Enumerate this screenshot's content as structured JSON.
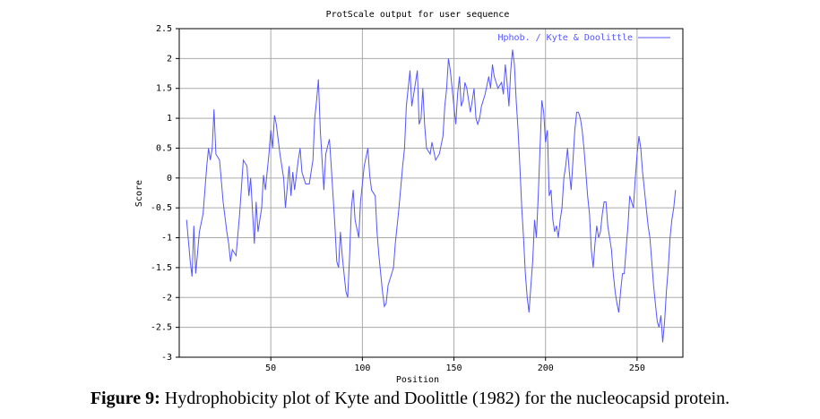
{
  "chart_data": {
    "type": "line",
    "title": "ProtScale output for user sequence",
    "xlabel": "Position",
    "ylabel": "Score",
    "xlim": [
      0,
      275
    ],
    "xticks": [
      50,
      100,
      150,
      200,
      250
    ],
    "ylim": [
      -3,
      2.5
    ],
    "yticks": [
      2.5,
      2,
      1.5,
      1,
      0.5,
      0,
      -0.5,
      -1,
      -1.5,
      -2,
      -2.5,
      -3
    ],
    "grid": true,
    "legend": "top-right",
    "series": [
      {
        "name": "Hphob. / Kyte & Doolittle",
        "color": "#5555ff",
        "x": [
          4,
          6,
          7,
          8,
          9,
          11,
          13,
          15,
          16,
          17,
          18,
          19,
          20,
          22,
          24,
          26,
          27,
          28,
          29,
          31,
          33,
          35,
          37,
          38,
          39,
          41,
          42,
          43,
          45,
          46,
          47,
          49,
          50,
          51,
          52,
          53,
          55,
          57,
          58,
          60,
          61,
          62,
          63,
          65,
          66,
          67,
          69,
          71,
          73,
          74,
          75,
          76,
          77,
          78,
          79,
          80,
          82,
          83,
          85,
          86,
          87,
          88,
          89,
          90,
          91,
          92,
          93,
          94,
          95,
          96,
          98,
          99,
          101,
          103,
          104,
          105,
          107,
          108,
          109,
          110,
          111,
          112,
          113,
          114,
          116,
          117,
          118,
          120,
          122,
          123,
          124,
          126,
          127,
          128,
          130,
          131,
          132,
          133,
          134,
          135,
          137,
          138,
          140,
          142,
          144,
          145,
          146,
          147,
          148,
          149,
          150,
          151,
          152,
          153,
          154,
          155,
          156,
          157,
          159,
          160,
          161,
          162,
          163,
          164,
          165,
          167,
          169,
          170,
          171,
          172,
          174,
          176,
          177,
          178,
          179,
          180,
          181,
          182,
          183,
          184,
          185,
          186,
          187,
          188,
          189,
          190,
          191,
          192,
          193,
          194,
          195,
          196,
          197,
          198,
          199,
          200,
          201,
          202,
          203,
          204,
          205,
          206,
          207,
          208,
          209,
          210,
          211,
          212,
          213,
          214,
          215,
          216,
          217,
          218,
          219,
          220,
          221,
          222,
          223,
          224,
          225,
          226,
          227,
          228,
          229,
          230,
          231,
          232,
          233,
          234,
          235,
          236,
          237,
          238,
          239,
          240,
          241,
          242,
          243,
          244,
          245,
          246,
          247,
          248,
          249,
          250,
          251,
          252,
          253,
          254,
          255,
          256,
          257,
          258,
          259,
          260,
          261,
          262,
          263,
          264,
          265,
          266,
          267,
          268,
          269,
          270,
          271
        ],
        "values": [
          -0.7,
          -1.4,
          -1.65,
          -0.8,
          -1.6,
          -0.9,
          -0.6,
          0.2,
          0.5,
          0.3,
          0.5,
          1.15,
          0.4,
          0.3,
          -0.4,
          -0.9,
          -1.1,
          -1.4,
          -1.2,
          -1.3,
          -0.6,
          0.3,
          0.2,
          -0.3,
          0.0,
          -1.1,
          -0.4,
          -0.9,
          -0.5,
          0.05,
          -0.2,
          0.4,
          0.8,
          0.5,
          1.05,
          0.9,
          0.4,
          0.0,
          -0.5,
          0.2,
          -0.3,
          0.1,
          -0.2,
          0.3,
          0.5,
          0.1,
          -0.1,
          -0.1,
          0.3,
          1.0,
          1.3,
          1.65,
          0.8,
          0.3,
          -0.2,
          0.4,
          0.65,
          0.2,
          -0.8,
          -1.4,
          -1.5,
          -0.9,
          -1.3,
          -1.6,
          -1.9,
          -2.0,
          -1.3,
          -0.5,
          -0.2,
          -0.7,
          -1.0,
          -0.4,
          0.2,
          0.5,
          0.05,
          -0.2,
          -0.3,
          -0.9,
          -1.3,
          -1.6,
          -1.9,
          -2.15,
          -2.1,
          -1.8,
          -1.6,
          -1.5,
          -1.1,
          -0.5,
          0.2,
          0.5,
          1.2,
          1.8,
          1.2,
          1.4,
          1.8,
          0.9,
          1.0,
          1.5,
          0.9,
          0.5,
          0.4,
          0.6,
          0.3,
          0.4,
          0.7,
          1.2,
          1.5,
          2.0,
          1.8,
          1.5,
          1.2,
          0.9,
          1.4,
          1.7,
          1.2,
          1.3,
          1.6,
          1.5,
          1.1,
          1.3,
          1.5,
          1.0,
          0.9,
          1.0,
          1.2,
          1.4,
          1.7,
          1.5,
          1.9,
          1.7,
          1.5,
          1.6,
          1.4,
          1.9,
          1.6,
          1.2,
          1.8,
          2.15,
          1.9,
          1.3,
          0.8,
          0.2,
          -0.5,
          -1.0,
          -1.6,
          -2.0,
          -2.25,
          -1.8,
          -1.4,
          -0.7,
          -1.0,
          -0.3,
          0.5,
          1.3,
          1.1,
          0.6,
          0.8,
          -0.3,
          -0.2,
          -0.7,
          -0.9,
          -0.8,
          -1.0,
          -0.7,
          -0.5,
          0.0,
          0.2,
          0.5,
          0.1,
          -0.2,
          0.3,
          0.8,
          1.1,
          1.1,
          1.0,
          0.8,
          0.5,
          0.1,
          -0.3,
          -0.6,
          -1.2,
          -1.5,
          -1.1,
          -0.8,
          -1.0,
          -0.9,
          -0.6,
          -0.4,
          -0.4,
          -0.8,
          -1.0,
          -1.2,
          -1.6,
          -1.9,
          -2.1,
          -2.25,
          -1.9,
          -1.6,
          -1.6,
          -1.2,
          -0.8,
          -0.3,
          -0.4,
          -0.5,
          0.0,
          0.4,
          0.7,
          0.5,
          0.1,
          -0.2,
          -0.5,
          -0.8,
          -1.0,
          -1.4,
          -1.8,
          -2.1,
          -2.4,
          -2.5,
          -2.3,
          -2.75,
          -2.4,
          -1.9,
          -1.5,
          -1.0,
          -0.7,
          -0.5,
          -0.2
        ]
      }
    ]
  },
  "caption": {
    "label": "Figure 9:",
    "text": " Hydrophobicity plot of Kyte and Doolittle (1982) for the nucleocapsid protein."
  }
}
